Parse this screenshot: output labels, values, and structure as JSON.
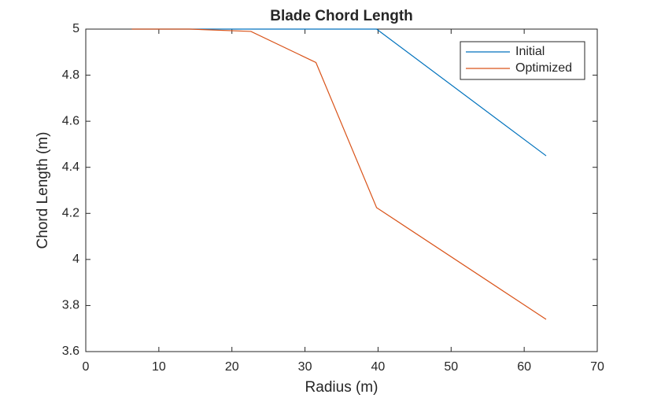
{
  "chart_data": {
    "type": "line",
    "title": "Blade Chord Length",
    "x_label": "Radius (m)",
    "y_label": "Chord Length (m)",
    "x": [
      6.3,
      14.2,
      22.6,
      31.5,
      39.8,
      63
    ],
    "series": [
      {
        "name": "Initial",
        "color": "#0072bd",
        "values": [
          5,
          5,
          5,
          5,
          5,
          4.45
        ]
      },
      {
        "name": "Optimized",
        "color": "#d95319",
        "values": [
          5,
          5,
          4.99,
          4.855,
          4.225,
          3.74
        ]
      }
    ],
    "xlim": [
      0,
      70
    ],
    "xticks": [
      0,
      10,
      20,
      30,
      40,
      50,
      60,
      70
    ],
    "ylim": [
      3.6,
      5
    ],
    "yticks": [
      3.6,
      3.8,
      4,
      4.2,
      4.4,
      4.6,
      4.8,
      5
    ],
    "grid": false,
    "legend": "top-right"
  }
}
